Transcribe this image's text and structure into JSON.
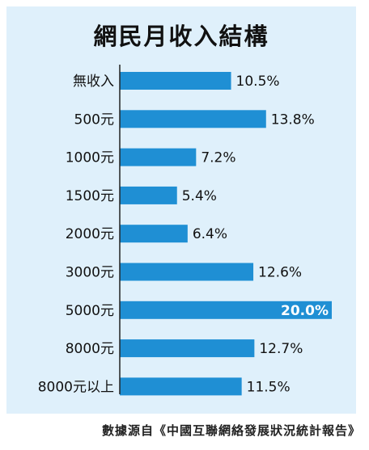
{
  "chart_data": {
    "type": "bar",
    "orientation": "horizontal",
    "title": "網民月收入結構",
    "categories": [
      "無收入",
      "500元",
      "1000元",
      "1500元",
      "2000元",
      "3000元",
      "5000元",
      "8000元",
      "8000元以上"
    ],
    "values": [
      10.5,
      13.8,
      7.2,
      5.4,
      6.4,
      12.6,
      20.0,
      12.7,
      11.5
    ],
    "value_labels": [
      "10.5%",
      "13.8%",
      "7.2%",
      "5.4%",
      "6.4%",
      "12.6%",
      "20.0%",
      "12.7%",
      "11.5%"
    ],
    "highlight_index": 6,
    "unit": "%",
    "xlim": [
      0,
      20
    ],
    "grid": false,
    "colors": {
      "bar": "#1f8fd4",
      "panel": "#dff0fb",
      "axis": "#222222",
      "highlight_label": "#ffffff"
    }
  },
  "source": "數據源自《中國互聯網絡發展狀況統計報告》"
}
